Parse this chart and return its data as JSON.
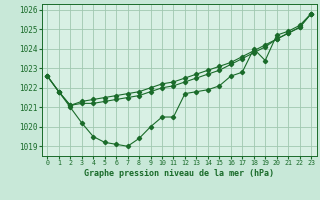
{
  "title": "Graphe pression niveau de la mer (hPa)",
  "bg_color": "#c8e8d8",
  "plot_bg_color": "#d8f0e4",
  "grid_color": "#a0c8b0",
  "line_color": "#1a6b2a",
  "xlim": [
    -0.5,
    23.5
  ],
  "ylim": [
    1018.5,
    1026.3
  ],
  "yticks": [
    1019,
    1020,
    1021,
    1022,
    1023,
    1024,
    1025,
    1026
  ],
  "xticks": [
    0,
    1,
    2,
    3,
    4,
    5,
    6,
    7,
    8,
    9,
    10,
    11,
    12,
    13,
    14,
    15,
    16,
    17,
    18,
    19,
    20,
    21,
    22,
    23
  ],
  "series1_x": [
    0,
    1,
    2,
    3,
    4,
    5,
    6,
    7,
    8,
    9,
    10,
    11,
    12,
    13,
    14,
    15,
    16,
    17,
    18,
    19,
    20,
    21,
    22,
    23
  ],
  "series1_y": [
    1022.6,
    1021.8,
    1021.0,
    1020.2,
    1019.5,
    1019.2,
    1019.1,
    1019.0,
    1019.4,
    1020.0,
    1020.5,
    1020.5,
    1021.7,
    1021.8,
    1021.9,
    1022.1,
    1022.6,
    1022.8,
    1024.0,
    1023.4,
    1024.7,
    1024.9,
    1025.2,
    1025.8
  ],
  "series2_x": [
    0,
    1,
    2,
    3,
    4,
    5,
    6,
    7,
    8,
    9,
    10,
    11,
    12,
    13,
    14,
    15,
    16,
    17,
    18,
    19,
    20,
    21,
    22,
    23
  ],
  "series2_y": [
    1022.6,
    1021.8,
    1021.1,
    1021.2,
    1021.2,
    1021.3,
    1021.4,
    1021.5,
    1021.6,
    1021.8,
    1022.0,
    1022.1,
    1022.3,
    1022.5,
    1022.7,
    1022.9,
    1023.2,
    1023.5,
    1023.8,
    1024.1,
    1024.5,
    1024.8,
    1025.1,
    1025.8
  ],
  "series3_x": [
    0,
    1,
    2,
    3,
    4,
    5,
    6,
    7,
    8,
    9,
    10,
    11,
    12,
    13,
    14,
    15,
    16,
    17,
    18,
    19,
    20,
    21,
    22,
    23
  ],
  "series3_y": [
    1022.6,
    1021.8,
    1021.1,
    1021.3,
    1021.4,
    1021.5,
    1021.6,
    1021.7,
    1021.8,
    1022.0,
    1022.2,
    1022.3,
    1022.5,
    1022.7,
    1022.9,
    1023.1,
    1023.3,
    1023.6,
    1023.9,
    1024.2,
    1024.5,
    1024.8,
    1025.1,
    1025.8
  ],
  "xlabel_fontsize": 6.0,
  "ytick_fontsize": 5.5,
  "xtick_fontsize": 4.8
}
